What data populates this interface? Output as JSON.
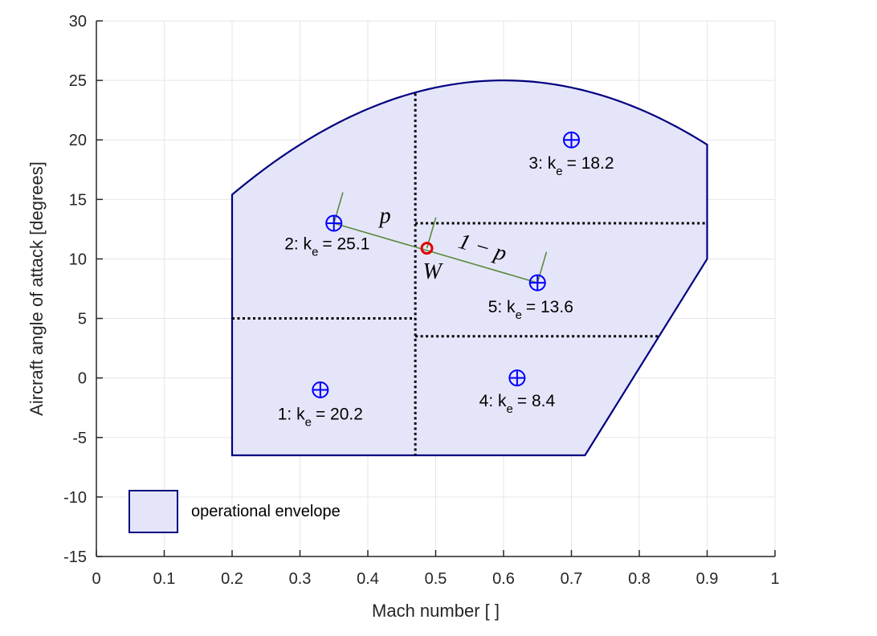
{
  "chart_data": {
    "type": "scatter",
    "xlabel": "Mach number [ ]",
    "ylabel": "Aircraft angle of attack [degrees]",
    "xlim": [
      0,
      1
    ],
    "ylim": [
      -15,
      30
    ],
    "xticks": [
      0,
      0.1,
      0.2,
      0.3,
      0.4,
      0.5,
      0.6,
      0.7,
      0.8,
      0.9,
      1
    ],
    "xtick_labels": [
      "0",
      "0.1",
      "0.2",
      "0.3",
      "0.4",
      "0.5",
      "0.6",
      "0.7",
      "0.8",
      "0.9",
      "1"
    ],
    "yticks": [
      -15,
      -10,
      -5,
      0,
      5,
      10,
      15,
      20,
      25,
      30
    ],
    "ytick_labels": [
      "-15",
      "-10",
      "-5",
      "0",
      "5",
      "10",
      "15",
      "20",
      "25",
      "30"
    ],
    "grid": true,
    "envelope": {
      "legend": "operational envelope",
      "fill": "#e5e5fa",
      "edge": "#000080",
      "arc_x_range": [
        0.2,
        0.9
      ],
      "arc_vertex": [
        0.6,
        25
      ],
      "vertices_after_arc": [
        [
          0.9,
          10
        ],
        [
          0.72,
          -6.5
        ],
        [
          0.2,
          -6.5
        ]
      ]
    },
    "partition_lines": [
      [
        [
          0.47,
          23.9
        ],
        [
          0.47,
          -6.5
        ]
      ],
      [
        [
          0.2,
          5
        ],
        [
          0.47,
          5
        ]
      ],
      [
        [
          0.47,
          13
        ],
        [
          0.9,
          13
        ]
      ],
      [
        [
          0.47,
          3.5
        ],
        [
          0.83,
          3.5
        ]
      ]
    ],
    "points": [
      {
        "id": "1",
        "x": 0.33,
        "y": -1,
        "label": "1: k",
        "sub": "e",
        "value": "= 20.2",
        "label_pos": [
          0.33,
          -3.5
        ]
      },
      {
        "id": "2",
        "x": 0.35,
        "y": 13,
        "label": "2: k",
        "sub": "e",
        "value": "= 25.1",
        "label_pos": [
          0.34,
          10.8
        ]
      },
      {
        "id": "3",
        "x": 0.7,
        "y": 20,
        "label": "3: k",
        "sub": "e",
        "value": "= 18.2",
        "label_pos": [
          0.7,
          17.6
        ]
      },
      {
        "id": "4",
        "x": 0.62,
        "y": 0,
        "label": "4: k",
        "sub": "e",
        "value": "= 8.4",
        "label_pos": [
          0.62,
          -2.4
        ]
      },
      {
        "id": "5",
        "x": 0.65,
        "y": 8,
        "label": "5: k",
        "sub": "e",
        "value": "= 13.6",
        "label_pos": [
          0.64,
          5.5
        ]
      }
    ],
    "interpolation": {
      "from": [
        0.35,
        13
      ],
      "to": [
        0.65,
        8
      ],
      "point": [
        0.487,
        10.9
      ],
      "point_label": "W",
      "p_label": "p",
      "one_minus_p_label": "1 − p",
      "line_color": "#5a8a3c",
      "point_color": "#e00000",
      "marker_color": "#0000ff"
    }
  }
}
